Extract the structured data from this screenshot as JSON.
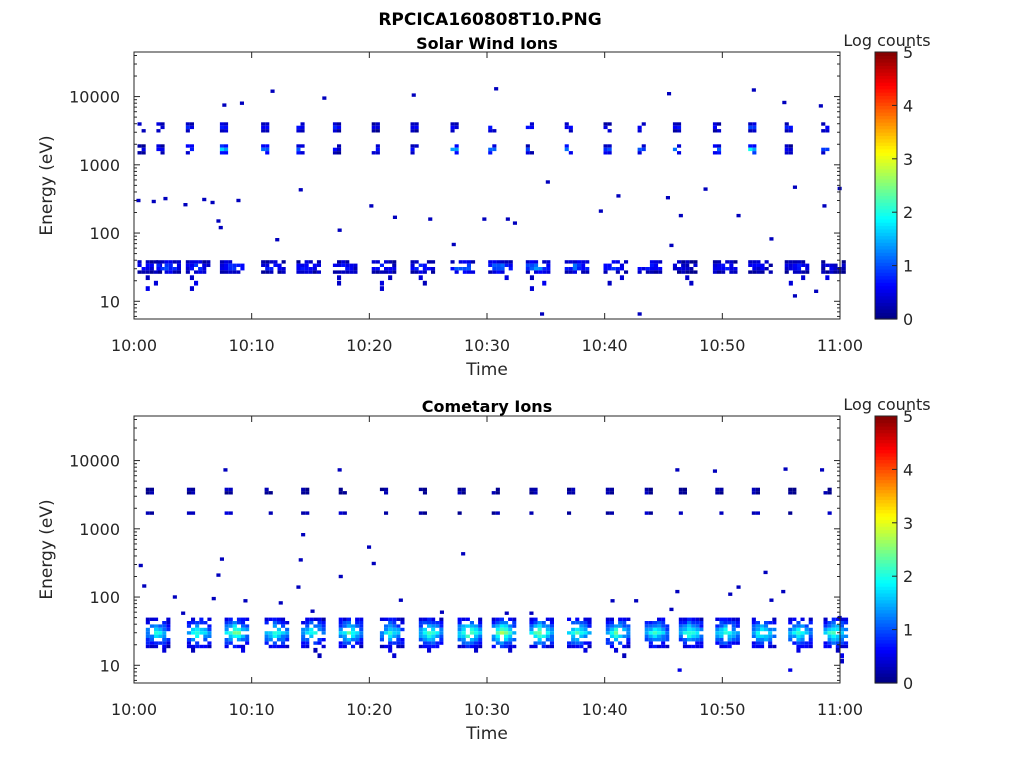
{
  "figure": {
    "title": "RPCICA160808T10.PNG"
  },
  "colormap": "jet",
  "chart_data": [
    {
      "type": "heatmap",
      "panel": "top",
      "title": "Solar Wind Ions",
      "xlabel": "Time",
      "ylabel": "Energy (eV)",
      "xticks": [
        "10:00",
        "10:10",
        "10:20",
        "10:30",
        "10:40",
        "10:50",
        "11:00"
      ],
      "xlim_minutes": [
        0,
        60
      ],
      "yscale": "log",
      "ylim": [
        5.5,
        45000
      ],
      "yticks": [
        10,
        100,
        1000,
        10000
      ],
      "ytick_labels": [
        "10",
        "100",
        "1000",
        "10000"
      ],
      "colorbar": {
        "label": "Log counts",
        "ticks": [
          "0",
          "1",
          "2",
          "3",
          "4",
          "5"
        ],
        "range": [
          0,
          5
        ]
      },
      "scan_times_minutes": [
        0.3,
        1.9,
        4.4,
        7.3,
        10.8,
        13.8,
        16.9,
        20.2,
        23.5,
        26.9,
        30.1,
        33.3,
        36.6,
        39.9,
        42.8,
        45.8,
        49.2,
        52.2,
        55.3,
        58.4
      ],
      "bands": [
        {
          "energy_range": [
            24,
            40
          ],
          "levels": [
            0.7,
            1.2,
            1.0,
            1.1,
            0.9,
            0.9,
            0.8,
            0.9,
            1.0,
            1.5,
            1.4,
            1.6,
            1.3,
            1.1,
            1.0,
            0.6,
            0.9,
            0.7,
            0.9,
            0.6
          ]
        },
        {
          "energy_range": [
            1500,
            2000
          ],
          "levels": [
            0.6,
            0.9,
            1.2,
            1.9,
            1.4,
            1.5,
            0.6,
            0.8,
            0.8,
            1.9,
            1.4,
            1.0,
            1.5,
            1.2,
            1.3,
            1.5,
            1.6,
            2.2,
            0.7,
            1.2
          ]
        },
        {
          "energy_range": [
            3000,
            4200
          ],
          "levels": [
            0.8,
            0.8,
            0.8,
            0.8,
            0.8,
            0.8,
            0.8,
            0.6,
            0.8,
            0.8,
            0.8,
            0.8,
            0.8,
            0.8,
            0.8,
            0.8,
            0.8,
            1.0,
            0.8,
            1.0
          ]
        }
      ],
      "sparse_points": [
        {
          "t": 0.2,
          "e": 300,
          "v": 0.3
        },
        {
          "t": 1.5,
          "e": 290,
          "v": 0.3
        },
        {
          "t": 2.5,
          "e": 320,
          "v": 0.3
        },
        {
          "t": 4.2,
          "e": 260,
          "v": 0.3
        },
        {
          "t": 5.8,
          "e": 310,
          "v": 0.3
        },
        {
          "t": 6.5,
          "e": 280,
          "v": 0.3
        },
        {
          "t": 7.0,
          "e": 150,
          "v": 0.3
        },
        {
          "t": 7.2,
          "e": 120,
          "v": 0.3
        },
        {
          "t": 8.7,
          "e": 300,
          "v": 0.3
        },
        {
          "t": 12.0,
          "e": 80,
          "v": 0.3
        },
        {
          "t": 14.0,
          "e": 430,
          "v": 0.3
        },
        {
          "t": 17.3,
          "e": 110,
          "v": 0.3
        },
        {
          "t": 20.0,
          "e": 250,
          "v": 0.3
        },
        {
          "t": 22.0,
          "e": 170,
          "v": 0.3
        },
        {
          "t": 25.0,
          "e": 160,
          "v": 0.3
        },
        {
          "t": 29.6,
          "e": 160,
          "v": 0.3
        },
        {
          "t": 31.6,
          "e": 160,
          "v": 0.3
        },
        {
          "t": 32.2,
          "e": 140,
          "v": 0.3
        },
        {
          "t": 34.5,
          "e": 6.5,
          "v": 0.3
        },
        {
          "t": 35.0,
          "e": 560,
          "v": 0.3
        },
        {
          "t": 39.5,
          "e": 210,
          "v": 0.3
        },
        {
          "t": 41.0,
          "e": 350,
          "v": 0.3
        },
        {
          "t": 42.8,
          "e": 6.5,
          "v": 0.3
        },
        {
          "t": 45.2,
          "e": 330,
          "v": 0.3
        },
        {
          "t": 46.3,
          "e": 180,
          "v": 0.3
        },
        {
          "t": 48.4,
          "e": 440,
          "v": 0.3
        },
        {
          "t": 51.2,
          "e": 180,
          "v": 0.3
        },
        {
          "t": 54.0,
          "e": 82,
          "v": 0.3
        },
        {
          "t": 56.0,
          "e": 470,
          "v": 0.3
        },
        {
          "t": 58.5,
          "e": 250,
          "v": 0.3
        },
        {
          "t": 59.8,
          "e": 450,
          "v": 0.3
        },
        {
          "t": 7.5,
          "e": 7500,
          "v": 0.3
        },
        {
          "t": 9.0,
          "e": 8000,
          "v": 0.3
        },
        {
          "t": 11.6,
          "e": 12000,
          "v": 0.3
        },
        {
          "t": 16.0,
          "e": 9500,
          "v": 0.3
        },
        {
          "t": 23.6,
          "e": 10500,
          "v": 0.3
        },
        {
          "t": 30.6,
          "e": 13000,
          "v": 0.3
        },
        {
          "t": 45.3,
          "e": 11000,
          "v": 0.3
        },
        {
          "t": 52.5,
          "e": 12500,
          "v": 0.3
        },
        {
          "t": 55.1,
          "e": 8200,
          "v": 0.3
        },
        {
          "t": 58.2,
          "e": 7300,
          "v": 0.3
        },
        {
          "t": 27.0,
          "e": 68,
          "v": 0.3
        },
        {
          "t": 45.5,
          "e": 66,
          "v": 0.3
        },
        {
          "t": 57.8,
          "e": 14,
          "v": 0.3
        },
        {
          "t": 56.0,
          "e": 12,
          "v": 0.3
        }
      ]
    },
    {
      "type": "heatmap",
      "panel": "bottom",
      "title": "Cometary Ions",
      "xlabel": "Time",
      "ylabel": "Energy (eV)",
      "xticks": [
        "10:00",
        "10:10",
        "10:20",
        "10:30",
        "10:40",
        "10:50",
        "11:00"
      ],
      "xlim_minutes": [
        0,
        60
      ],
      "yscale": "log",
      "ylim": [
        5.5,
        45000
      ],
      "yticks": [
        10,
        100,
        1000,
        10000
      ],
      "ytick_labels": [
        "10",
        "100",
        "1000",
        "10000"
      ],
      "colorbar": {
        "label": "Log counts",
        "ticks": [
          "0",
          "1",
          "2",
          "3",
          "4",
          "5"
        ],
        "range": [
          0,
          5
        ]
      },
      "scan_times_minutes": [
        1.0,
        4.5,
        7.7,
        11.1,
        14.2,
        17.4,
        20.9,
        24.2,
        27.5,
        30.4,
        33.6,
        36.8,
        40.1,
        43.4,
        46.3,
        49.4,
        52.5,
        55.6,
        58.6
      ],
      "bands": [
        {
          "energy_range": [
            18,
            50
          ],
          "levels": [
            2.0,
            2.2,
            2.6,
            2.2,
            2.1,
            2.3,
            2.1,
            2.3,
            2.6,
            2.7,
            2.6,
            2.3,
            2.4,
            2.2,
            2.3,
            2.2,
            2.3,
            2.2,
            2.4
          ]
        },
        {
          "energy_range": [
            3300,
            4000
          ],
          "levels": [
            0.3,
            0.3,
            0.4,
            0.3,
            0.3,
            0.3,
            0.3,
            0.3,
            0.3,
            0.3,
            0.3,
            0.3,
            0.3,
            0.3,
            0.3,
            0.3,
            0.3,
            0.3,
            0.3
          ]
        },
        {
          "energy_range": [
            1600,
            1800
          ],
          "levels": [
            0.3,
            0.3,
            0.4,
            0.3,
            0.3,
            0.3,
            0.3,
            0.3,
            0.3,
            0.3,
            0.3,
            0.3,
            0.3,
            0.3,
            0.3,
            0.3,
            0.4,
            0.3,
            0.3
          ]
        }
      ],
      "sparse_points": [
        {
          "t": 0.4,
          "e": 290,
          "v": 0.3
        },
        {
          "t": 0.7,
          "e": 145,
          "v": 0.3
        },
        {
          "t": 3.3,
          "e": 100,
          "v": 0.3
        },
        {
          "t": 4.0,
          "e": 58,
          "v": 0.3
        },
        {
          "t": 6.6,
          "e": 95,
          "v": 0.3
        },
        {
          "t": 7.0,
          "e": 210,
          "v": 0.3
        },
        {
          "t": 7.3,
          "e": 360,
          "v": 0.3
        },
        {
          "t": 7.6,
          "e": 7300,
          "v": 0.3
        },
        {
          "t": 9.3,
          "e": 88,
          "v": 0.3
        },
        {
          "t": 12.3,
          "e": 82,
          "v": 0.3
        },
        {
          "t": 13.8,
          "e": 140,
          "v": 0.3
        },
        {
          "t": 14.0,
          "e": 350,
          "v": 0.3
        },
        {
          "t": 14.2,
          "e": 820,
          "v": 0.3
        },
        {
          "t": 15.0,
          "e": 62,
          "v": 0.3
        },
        {
          "t": 17.4,
          "e": 200,
          "v": 0.3
        },
        {
          "t": 17.3,
          "e": 7300,
          "v": 0.3
        },
        {
          "t": 19.8,
          "e": 540,
          "v": 0.3
        },
        {
          "t": 20.2,
          "e": 310,
          "v": 0.3
        },
        {
          "t": 22.5,
          "e": 90,
          "v": 0.3
        },
        {
          "t": 27.8,
          "e": 430,
          "v": 0.3
        },
        {
          "t": 33.6,
          "e": 58,
          "v": 0.3
        },
        {
          "t": 40.5,
          "e": 88,
          "v": 0.3
        },
        {
          "t": 42.5,
          "e": 88,
          "v": 0.3
        },
        {
          "t": 45.5,
          "e": 66,
          "v": 0.3
        },
        {
          "t": 46.0,
          "e": 120,
          "v": 0.3
        },
        {
          "t": 46.0,
          "e": 7300,
          "v": 0.3
        },
        {
          "t": 49.2,
          "e": 7000,
          "v": 0.3
        },
        {
          "t": 50.5,
          "e": 110,
          "v": 0.3
        },
        {
          "t": 51.2,
          "e": 140,
          "v": 0.3
        },
        {
          "t": 53.5,
          "e": 230,
          "v": 0.3
        },
        {
          "t": 54.0,
          "e": 90,
          "v": 0.3
        },
        {
          "t": 55.0,
          "e": 120,
          "v": 0.3
        },
        {
          "t": 55.2,
          "e": 7500,
          "v": 0.3
        },
        {
          "t": 58.3,
          "e": 7300,
          "v": 0.3
        },
        {
          "t": 59.8,
          "e": 50,
          "v": 0.3
        },
        {
          "t": 46.2,
          "e": 8.5,
          "v": 0.5
        },
        {
          "t": 55.6,
          "e": 8.5,
          "v": 0.5
        },
        {
          "t": 26.0,
          "e": 60,
          "v": 0.3
        },
        {
          "t": 31.5,
          "e": 58,
          "v": 0.3
        }
      ]
    }
  ]
}
